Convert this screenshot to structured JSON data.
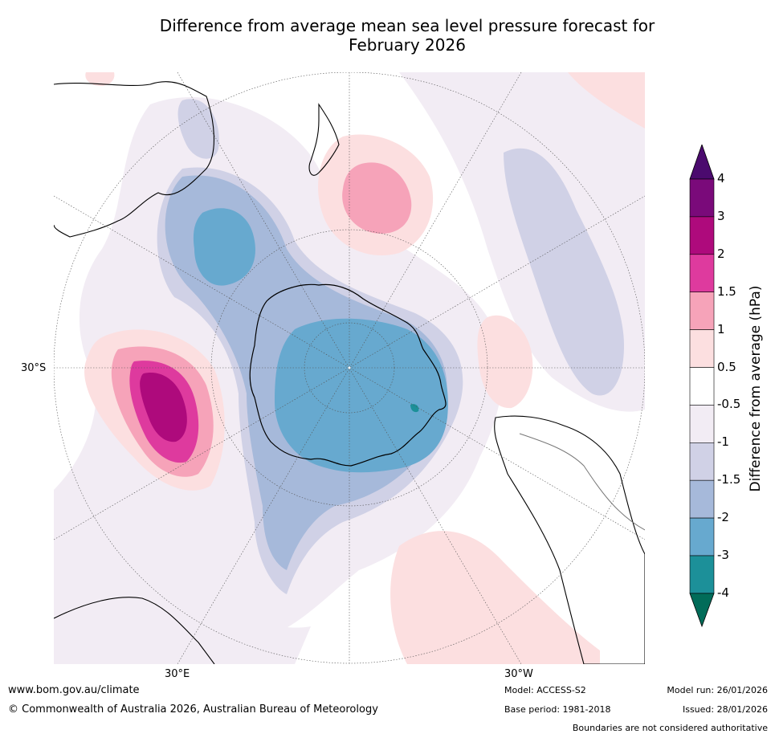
{
  "title": {
    "line1": "Difference from average mean sea level pressure forecast for",
    "line2": "February 2026"
  },
  "map": {
    "projection": "south-polar-stereographic",
    "lat_label": "30°S",
    "lon_labels": {
      "east": "30°E",
      "west": "30°W"
    },
    "regions": [
      {
        "name": "anomaly-field-antarctica-core",
        "category": "-3 to -2"
      },
      {
        "name": "anomaly-field-indian-ocean-low",
        "category": "-3 to -2"
      },
      {
        "name": "anomaly-field-southern-ocean-trough",
        "category": "-2 to -1"
      },
      {
        "name": "anomaly-field-south-atlantic-high",
        "category": "2 to 3"
      },
      {
        "name": "anomaly-field-tasman-high",
        "category": "1.5 to 2"
      },
      {
        "name": "anomaly-field-south-pacific-high",
        "category": "0.5 to 1"
      },
      {
        "name": "anomaly-field-east-pacific-low",
        "category": "-1.5 to -1"
      }
    ]
  },
  "colorbar": {
    "title": "Difference from average (hPa)",
    "ticks": [
      "4",
      "3",
      "2",
      "1.5",
      "1",
      "0.5",
      "-0.5",
      "-1",
      "-1.5",
      "-2",
      "-3",
      "-4"
    ],
    "colors": {
      "above_4": "#4b0a6e",
      "3_to_4": "#7a0a7a",
      "2_to_3": "#ae0a7c",
      "1.5_to_2": "#de3a9e",
      "1_to_1.5": "#f6a3b9",
      "0.5_to_1": "#fcdfe0",
      "neutral": "#ffffff",
      "-1_to_-0.5": "#f2ecf4",
      "-1.5_to_-1": "#d0d1e6",
      "-2_to_-1.5": "#a6b9da",
      "-3_to_-2": "#67a9cf",
      "-4_to_-3": "#1c9099",
      "below_-4": "#016c59"
    }
  },
  "footer": {
    "website": "www.bom.gov.au/climate",
    "copyright": "© Commonwealth of Australia 2026, Australian Bureau of Meteorology",
    "model": "Model: ACCESS-S2",
    "base_period": "Base period: 1981-2018",
    "model_run": "Model run: 26/01/2026",
    "issued": "Issued: 28/01/2026",
    "disclaimer": "Boundaries are not considered authoritative"
  }
}
